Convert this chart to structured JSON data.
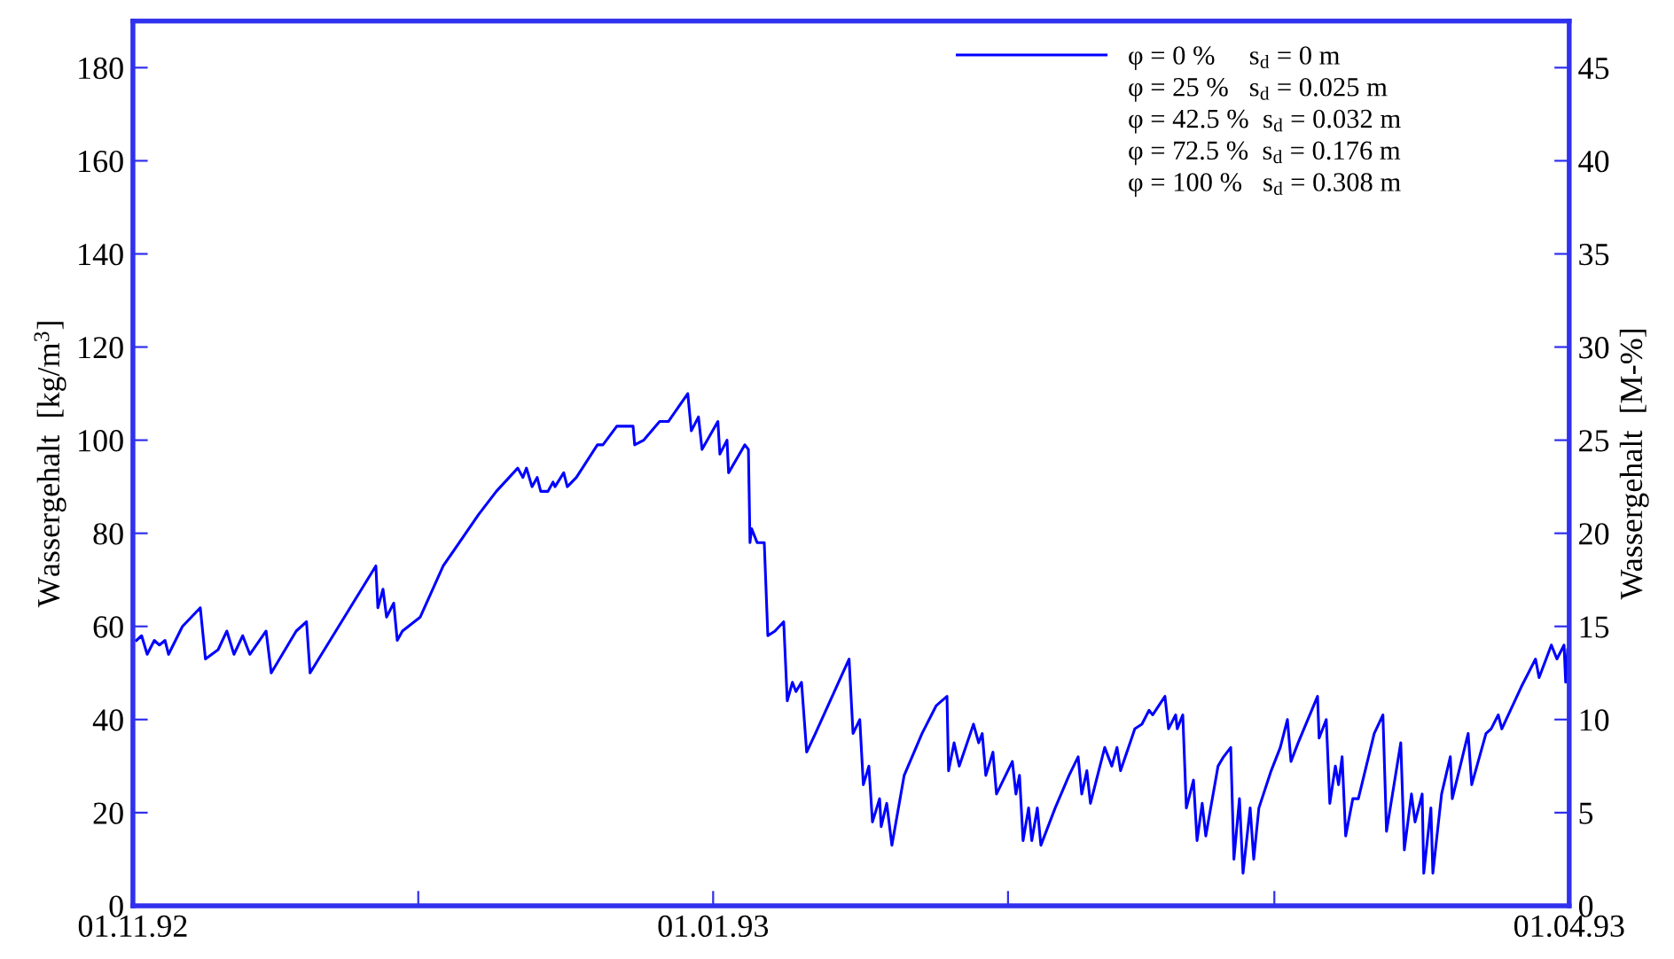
{
  "chart_data": {
    "type": "line",
    "ylabel": "Wassergehalt  [kg/m$^{3}$]",
    "y2label": "Wassergehalt  [M-%]",
    "xlim": [
      "1992-11-01",
      "1993-04-01"
    ],
    "xticks": [
      {
        "value": "1992-11-01",
        "label": "01.11.92"
      },
      {
        "value": "1992-12-01",
        "label": null
      },
      {
        "value": "1993-01-01",
        "label": "01.01.93"
      },
      {
        "value": "1993-02-01",
        "label": null
      },
      {
        "value": "1993-03-01",
        "label": null
      },
      {
        "value": "1993-04-01",
        "label": "01.04.93"
      }
    ],
    "ylim": [
      0,
      190
    ],
    "yticks": [
      0,
      20,
      40,
      60,
      80,
      100,
      120,
      140,
      160,
      180
    ],
    "y2lim": [
      0,
      47.5
    ],
    "y2ticks": [
      0,
      5,
      10,
      15,
      20,
      25,
      30,
      35,
      40,
      45
    ],
    "legend": "top right",
    "grid": false,
    "annotations": [
      "φ = 25 %   s$_{d}$ = 0.025 m",
      "φ = 42.5 %  s$_{d}$ = 0.032 m",
      "φ = 72.5 %  s$_{d}$ = 0.176 m",
      "φ = 100 %   s$_{d}$ = 0.308 m"
    ],
    "series": [
      {
        "name": "φ = 0 %     s$_{d}$ = 0 m",
        "color": "#0000ff",
        "x": [
          "1992-11-01T09:00",
          "1992-11-01T22:00",
          "1992-11-02T12:00",
          "1992-11-03T06:00",
          "1992-11-03T19:00",
          "1992-11-04T09:00",
          "1992-11-04T18:00",
          "1992-11-06T05:00",
          "1992-11-08T02:00",
          "1992-11-08T15:00",
          "1992-11-09T23:00",
          "1992-11-10T21:00",
          "1992-11-11T15:00",
          "1992-11-12T13:00",
          "1992-11-13T07:00",
          "1992-11-15T00:00",
          "1992-11-15T13:00",
          "1992-11-18T04:00",
          "1992-11-19T06:00",
          "1992-11-19T15:00",
          "1992-11-26T13:00",
          "1992-11-26T18:00",
          "1992-11-27T07:00",
          "1992-11-27T16:00",
          "1992-11-28T10:00",
          "1992-11-28T19:00",
          "1992-11-29T08:00",
          "1992-12-01T05:00",
          "1992-12-03T15:00",
          "1992-12-07T08:00",
          "1992-12-09T05:00",
          "1992-12-11T11:00",
          "1992-12-12T00:00",
          "1992-12-12T09:00",
          "1992-12-12T23:00",
          "1992-12-13T12:00",
          "1992-12-13T21:00",
          "1992-12-14T15:00",
          "1992-12-15T04:00",
          "1992-12-15T09:00",
          "1992-12-16T07:00",
          "1992-12-16T16:00",
          "1992-12-17T15:00",
          "1992-12-19T20:00",
          "1992-12-20T10:00",
          "1992-12-21T21:00",
          "1992-12-23T14:00",
          "1992-12-23T18:00",
          "1992-12-24T17:00",
          "1992-12-26T09:00",
          "1992-12-27T07:00",
          "1992-12-29T08:00",
          "1992-12-29T17:00",
          "1992-12-30T11:00",
          "1992-12-30T20:00",
          "1993-01-01T12:00",
          "1993-01-01T17:00",
          "1993-01-02T11:00",
          "1993-01-02T15:00",
          "1993-01-04T08:00",
          "1993-01-04T17:00",
          "1993-01-04T21:00",
          "1993-01-05T01:00",
          "1993-01-05T15:00",
          "1993-01-06T09:00",
          "1993-01-06T18:00",
          "1993-01-07T12:00",
          "1993-01-08T10:00",
          "1993-01-08T19:00",
          "1993-01-09T08:00",
          "1993-01-09T17:00",
          "1993-01-10T07:00",
          "1993-01-10T20:00",
          "1993-01-11T18:00",
          "1993-01-15T07:00",
          "1993-01-15T17:00",
          "1993-01-16T10:00",
          "1993-01-16T19:00",
          "1993-01-17T09:00",
          "1993-01-17T18:00",
          "1993-01-18T12:00",
          "1993-01-18T16:00",
          "1993-01-19T06:00",
          "1993-01-19T19:00",
          "1993-01-21T02:00",
          "1993-01-22T23:00",
          "1993-01-24T11:00",
          "1993-01-25T14:00",
          "1993-01-25T18:00",
          "1993-01-26T08:00",
          "1993-01-26T21:00",
          "1993-01-28T09:00",
          "1993-01-28T22:00",
          "1993-01-29T07:00",
          "1993-01-29T16:00",
          "1993-01-30T10:00",
          "1993-01-30T19:00",
          "1993-02-01T11:00",
          "1993-02-01T20:00",
          "1993-02-02T05:00",
          "1993-02-02T14:00",
          "1993-02-03T04:00",
          "1993-02-03T12:00",
          "1993-02-04T02:00",
          "1993-02-04T11:00",
          "1993-02-05T23:00",
          "1993-02-07T10:00",
          "1993-02-08T09:00",
          "1993-02-08T18:00",
          "1993-02-09T07:00",
          "1993-02-09T16:00",
          "1993-02-11T04:00",
          "1993-02-11T22:00",
          "1993-02-12T11:00",
          "1993-02-12T20:00",
          "1993-02-14T08:00",
          "1993-02-15T02:00",
          "1993-02-15T20:00",
          "1993-02-16T05:00",
          "1993-02-17T12:00",
          "1993-02-17T21:00",
          "1993-02-18T15:00",
          "1993-02-18T19:00",
          "1993-02-19T09:00",
          "1993-02-19T18:00",
          "1993-02-20T12:00",
          "1993-02-20T21:00",
          "1993-02-21T10:00",
          "1993-02-21T19:00",
          "1993-02-23T02:00",
          "1993-02-23T16:00",
          "1993-02-24T10:00",
          "1993-02-24T18:00",
          "1993-02-25T08:00",
          "1993-02-25T17:00",
          "1993-02-26T11:00",
          "1993-02-26T20:00",
          "1993-02-27T09:00",
          "1993-02-28T16:00",
          "1993-03-01T15:00",
          "1993-03-02T09:00",
          "1993-03-02T18:00",
          "1993-03-03T12:00",
          "1993-03-05T13:00",
          "1993-03-05T17:00",
          "1993-03-06T11:00",
          "1993-03-06T20:00",
          "1993-03-07T10:00",
          "1993-03-07T18:00",
          "1993-03-08T03:00",
          "1993-03-08T12:00",
          "1993-03-09T06:00",
          "1993-03-09T20:00",
          "1993-03-11T12:00",
          "1993-03-12T10:00",
          "1993-03-12T19:00",
          "1993-03-14T07:00",
          "1993-03-14T16:00",
          "1993-03-15T10:00",
          "1993-03-15T19:00",
          "1993-03-16T13:00",
          "1993-03-16T17:00",
          "1993-03-17T11:00",
          "1993-03-17T16:00",
          "1993-03-18T14:00",
          "1993-03-19T12:00",
          "1993-03-19T17:00",
          "1993-03-21T09:00",
          "1993-03-21T18:00",
          "1993-03-23T06:00",
          "1993-03-23T19:00",
          "1993-03-24T13:00",
          "1993-03-24T22:00",
          "1993-03-26T23:00",
          "1993-03-28T11:00",
          "1993-03-28T20:00",
          "1993-03-30T03:00",
          "1993-03-30T17:00",
          "1993-03-31T11:00",
          "1993-03-31T15:00",
          "1993-03-31T20:00"
        ],
        "values": [
          57,
          58,
          54,
          57,
          56,
          57,
          54,
          60,
          64,
          53,
          55,
          59,
          54,
          58,
          54,
          59,
          50,
          59,
          61,
          50,
          73,
          64,
          68,
          62,
          65,
          57,
          59,
          62,
          73,
          84,
          89,
          94,
          92,
          94,
          90,
          92,
          89,
          89,
          91,
          90,
          93,
          90,
          92,
          99,
          99,
          103,
          103,
          99,
          100,
          104,
          104,
          110,
          102,
          105,
          98,
          104,
          97,
          100,
          93,
          99,
          98,
          78,
          81,
          78,
          78,
          58,
          59,
          61,
          44,
          48,
          46,
          48,
          33,
          37,
          53,
          37,
          40,
          26,
          30,
          18,
          23,
          17,
          22,
          13,
          28,
          37,
          43,
          45,
          29,
          35,
          30,
          39,
          35,
          37,
          28,
          33,
          24,
          31,
          24,
          28,
          14,
          21,
          14,
          21,
          13,
          21,
          28,
          32,
          24,
          29,
          22,
          34,
          30,
          34,
          29,
          38,
          39,
          42,
          41,
          45,
          38,
          41,
          38,
          41,
          21,
          27,
          14,
          22,
          15,
          30,
          32,
          34,
          10,
          23,
          7,
          21,
          10,
          21,
          29,
          34,
          40,
          31,
          35,
          45,
          36,
          40,
          22,
          30,
          26,
          32,
          15,
          23,
          23,
          37,
          41,
          16,
          35,
          12,
          24,
          18,
          24,
          7,
          21,
          7,
          24,
          32,
          23,
          37,
          26,
          37,
          38,
          41,
          38,
          47,
          53,
          49,
          56,
          53,
          56,
          48,
          55
        ]
      }
    ]
  }
}
